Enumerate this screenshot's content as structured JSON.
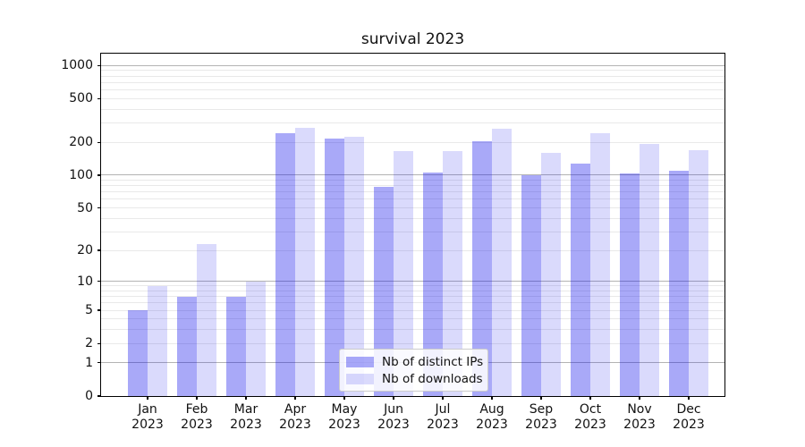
{
  "figure": {
    "title": "survival 2023"
  },
  "chart_data": {
    "type": "bar",
    "title": "survival 2023",
    "scale": "log1p",
    "xlabel": "",
    "ylabel": "",
    "categories": [
      "Jan\n2023",
      "Feb\n2023",
      "Mar\n2023",
      "Apr\n2023",
      "May\n2023",
      "Jun\n2023",
      "Jul\n2023",
      "Aug\n2023",
      "Sep\n2023",
      "Oct\n2023",
      "Nov\n2023",
      "Dec\n2023"
    ],
    "series": [
      {
        "name": "Nb of distinct IPs",
        "color": "rgba(10,10,235,0.35)",
        "values": [
          5,
          7,
          7,
          243,
          217,
          78,
          105,
          205,
          100,
          128,
          103,
          110
        ]
      },
      {
        "name": "Nb of downloads",
        "color": "rgba(10,10,235,0.15)",
        "values": [
          9,
          23,
          10,
          270,
          225,
          166,
          166,
          265,
          159,
          240,
          193,
          170
        ]
      }
    ],
    "yticks": [
      0,
      1,
      2,
      5,
      10,
      20,
      50,
      100,
      200,
      500,
      1000
    ],
    "ylim": [
      0,
      1280
    ],
    "grid": {
      "which": "major+minor",
      "major_color": "#b3b3b3",
      "minor_color": "#e9e9e9"
    },
    "legend_position": "inside-bottom-center"
  }
}
